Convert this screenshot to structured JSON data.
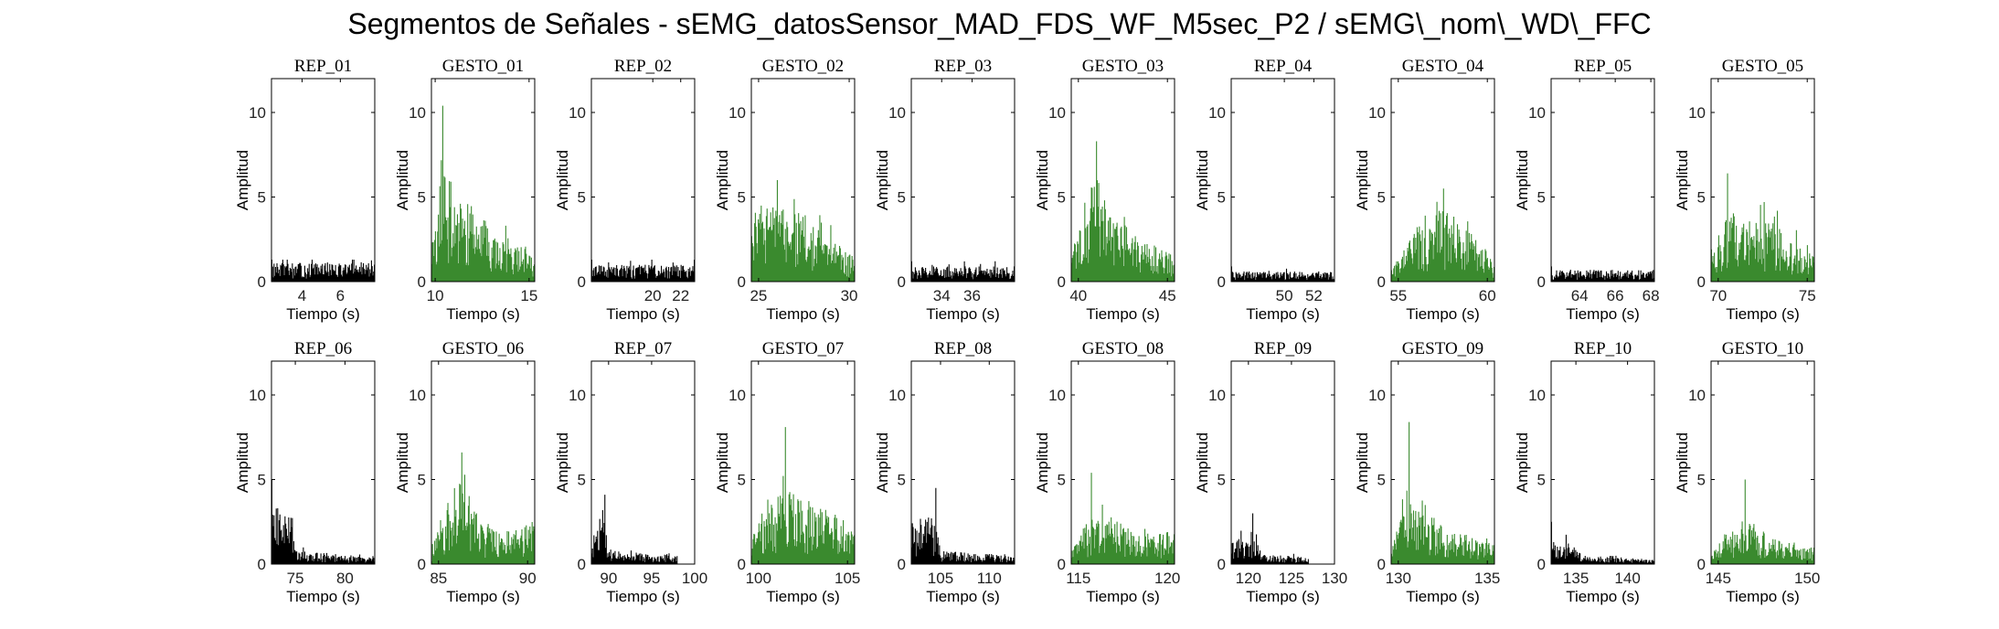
{
  "figure": {
    "title": "Segmentos de Señales - sEMG_datosSensor_MAD_FDS_WF_M5sec_P2 / sEMG\\_nom\\_WD\\_FFC"
  },
  "colors": {
    "rep": "#000000",
    "gesto": "#3a8a2e",
    "axes": "#000000",
    "background": "#ffffff"
  },
  "chart_data": [
    {
      "type": "bar",
      "title": "REP_01",
      "kind": "rep",
      "xlim": [
        2.4,
        7.8
      ],
      "xticks": [
        4,
        6
      ],
      "ylim": [
        0,
        12
      ],
      "yticks": [
        0,
        5,
        10
      ],
      "xlabel": "Tiempo (s)",
      "ylabel": "Amplitud",
      "data_start": 2.4,
      "data_end": 7.8,
      "envelope": [
        [
          2.4,
          1.1
        ],
        [
          7.8,
          1.1
        ]
      ],
      "peak": 1.3
    },
    {
      "type": "bar",
      "title": "GESTO_01",
      "kind": "gesto",
      "xlim": [
        9.8,
        15.3
      ],
      "xticks": [
        10,
        15
      ],
      "ylim": [
        0,
        12
      ],
      "yticks": [
        0,
        5,
        10
      ],
      "xlabel": "Tiempo (s)",
      "ylabel": "Amplitud",
      "data_start": 9.8,
      "data_end": 15.3,
      "envelope": [
        [
          9.8,
          2.0
        ],
        [
          10.4,
          6.5
        ],
        [
          11.2,
          5.5
        ],
        [
          12.4,
          3.8
        ],
        [
          13.6,
          3.0
        ],
        [
          15.3,
          1.8
        ]
      ],
      "peak": 10.4
    },
    {
      "type": "bar",
      "title": "REP_02",
      "kind": "rep",
      "xlim": [
        15.6,
        23.0
      ],
      "xticks": [
        20,
        22
      ],
      "ylim": [
        0,
        12
      ],
      "yticks": [
        0,
        5,
        10
      ],
      "xlabel": "Tiempo (s)",
      "ylabel": "Amplitud",
      "data_start": 15.6,
      "data_end": 23.0,
      "envelope": [
        [
          15.6,
          1.0
        ],
        [
          23.0,
          1.0
        ]
      ],
      "peak": 1.3
    },
    {
      "type": "bar",
      "title": "GESTO_02",
      "kind": "gesto",
      "xlim": [
        24.6,
        30.3
      ],
      "xticks": [
        25,
        30
      ],
      "ylim": [
        0,
        12
      ],
      "yticks": [
        0,
        5,
        10
      ],
      "xlabel": "Tiempo (s)",
      "ylabel": "Amplitud",
      "data_start": 24.6,
      "data_end": 30.3,
      "envelope": [
        [
          24.6,
          4.5
        ],
        [
          26.0,
          4.6
        ],
        [
          27.5,
          4.0
        ],
        [
          29.0,
          2.6
        ],
        [
          30.3,
          1.5
        ]
      ],
      "peak": 6.0
    },
    {
      "type": "bar",
      "title": "REP_03",
      "kind": "rep",
      "xlim": [
        32.0,
        38.8
      ],
      "xticks": [
        34,
        36
      ],
      "ylim": [
        0,
        12
      ],
      "yticks": [
        0,
        5,
        10
      ],
      "xlabel": "Tiempo (s)",
      "ylabel": "Amplitud",
      "data_start": 32.0,
      "data_end": 38.8,
      "envelope": [
        [
          32.0,
          0.9
        ],
        [
          38.8,
          0.9
        ]
      ],
      "peak": 1.2
    },
    {
      "type": "bar",
      "title": "GESTO_03",
      "kind": "gesto",
      "xlim": [
        39.6,
        45.4
      ],
      "xticks": [
        40,
        45
      ],
      "ylim": [
        0,
        12
      ],
      "yticks": [
        0,
        5,
        10
      ],
      "xlabel": "Tiempo (s)",
      "ylabel": "Amplitud",
      "data_start": 39.6,
      "data_end": 45.4,
      "envelope": [
        [
          39.6,
          1.5
        ],
        [
          40.5,
          4.5
        ],
        [
          41.0,
          7.0
        ],
        [
          41.8,
          4.0
        ],
        [
          43.5,
          2.6
        ],
        [
          45.4,
          1.5
        ]
      ],
      "peak": 8.3
    },
    {
      "type": "bar",
      "title": "REP_04",
      "kind": "rep",
      "xlim": [
        46.4,
        53.4
      ],
      "xticks": [
        50,
        52
      ],
      "ylim": [
        0,
        12
      ],
      "yticks": [
        0,
        5,
        10
      ],
      "xlabel": "Tiempo (s)",
      "ylabel": "Amplitud",
      "data_start": 46.4,
      "data_end": 53.4,
      "envelope": [
        [
          46.4,
          0.6
        ],
        [
          53.4,
          0.6
        ]
      ],
      "peak": 0.9
    },
    {
      "type": "bar",
      "title": "GESTO_04",
      "kind": "gesto",
      "xlim": [
        54.6,
        60.4
      ],
      "xticks": [
        55,
        60
      ],
      "ylim": [
        0,
        12
      ],
      "yticks": [
        0,
        5,
        10
      ],
      "xlabel": "Tiempo (s)",
      "ylabel": "Amplitud",
      "data_start": 54.6,
      "data_end": 60.4,
      "envelope": [
        [
          54.6,
          0.8
        ],
        [
          55.5,
          2.5
        ],
        [
          56.5,
          4.0
        ],
        [
          57.5,
          4.5
        ],
        [
          58.7,
          3.4
        ],
        [
          60.4,
          1.2
        ]
      ],
      "peak": 5.5
    },
    {
      "type": "bar",
      "title": "REP_05",
      "kind": "rep",
      "xlim": [
        62.4,
        68.2
      ],
      "xticks": [
        64,
        66,
        68
      ],
      "ylim": [
        0,
        12
      ],
      "yticks": [
        0,
        5,
        10
      ],
      "xlabel": "Tiempo (s)",
      "ylabel": "Amplitud",
      "data_start": 62.4,
      "data_end": 68.2,
      "envelope": [
        [
          62.4,
          0.7
        ],
        [
          68.2,
          0.7
        ]
      ],
      "peak": 0.9
    },
    {
      "type": "bar",
      "title": "GESTO_05",
      "kind": "gesto",
      "xlim": [
        69.6,
        75.4
      ],
      "xticks": [
        70,
        75
      ],
      "ylim": [
        0,
        12
      ],
      "yticks": [
        0,
        5,
        10
      ],
      "xlabel": "Tiempo (s)",
      "ylabel": "Amplitud",
      "data_start": 69.6,
      "data_end": 75.4,
      "envelope": [
        [
          69.6,
          1.5
        ],
        [
          70.5,
          4.2
        ],
        [
          71.5,
          3.8
        ],
        [
          73.0,
          3.5
        ],
        [
          74.5,
          2.2
        ],
        [
          75.4,
          1.5
        ]
      ],
      "peak": 6.4
    },
    {
      "type": "bar",
      "title": "REP_06",
      "kind": "rep",
      "xlim": [
        72.6,
        83.0
      ],
      "xticks": [
        75,
        80
      ],
      "ylim": [
        0,
        12
      ],
      "yticks": [
        0,
        5,
        10
      ],
      "xlabel": "Tiempo (s)",
      "ylabel": "Amplitud",
      "data_start": 72.6,
      "data_end": 83.0,
      "envelope": [
        [
          72.6,
          3.5
        ],
        [
          74.7,
          3.0
        ],
        [
          75.0,
          0.8
        ],
        [
          83.0,
          0.4
        ]
      ],
      "peak": 5.0
    },
    {
      "type": "bar",
      "title": "GESTO_06",
      "kind": "gesto",
      "xlim": [
        84.6,
        90.4
      ],
      "xticks": [
        85,
        90
      ],
      "ylim": [
        0,
        12
      ],
      "yticks": [
        0,
        5,
        10
      ],
      "xlabel": "Tiempo (s)",
      "ylabel": "Amplitud",
      "data_start": 84.6,
      "data_end": 90.4,
      "envelope": [
        [
          84.6,
          1.0
        ],
        [
          85.5,
          4.0
        ],
        [
          86.3,
          5.0
        ],
        [
          87.5,
          2.2
        ],
        [
          89.0,
          2.0
        ],
        [
          90.4,
          2.6
        ]
      ],
      "peak": 6.6
    },
    {
      "type": "bar",
      "title": "REP_07",
      "kind": "rep",
      "xlim": [
        88.0,
        100.0
      ],
      "xticks": [
        90,
        95,
        100
      ],
      "ylim": [
        0,
        12
      ],
      "yticks": [
        0,
        5,
        10
      ],
      "xlabel": "Tiempo (s)",
      "ylabel": "Amplitud",
      "data_start": 88.0,
      "data_end": 98.0,
      "envelope": [
        [
          88.0,
          2.5
        ],
        [
          89.5,
          2.8
        ],
        [
          90.0,
          0.8
        ],
        [
          98.0,
          0.5
        ]
      ],
      "peak": 4.1
    },
    {
      "type": "bar",
      "title": "GESTO_07",
      "kind": "gesto",
      "xlim": [
        99.6,
        105.4
      ],
      "xticks": [
        100,
        105
      ],
      "ylim": [
        0,
        12
      ],
      "yticks": [
        0,
        5,
        10
      ],
      "xlabel": "Tiempo (s)",
      "ylabel": "Amplitud",
      "data_start": 99.6,
      "data_end": 105.4,
      "envelope": [
        [
          99.6,
          1.5
        ],
        [
          100.5,
          4.0
        ],
        [
          101.5,
          4.5
        ],
        [
          103.0,
          3.5
        ],
        [
          104.5,
          3.0
        ],
        [
          105.4,
          2.0
        ]
      ],
      "peak": 8.1
    },
    {
      "type": "bar",
      "title": "REP_08",
      "kind": "rep",
      "xlim": [
        102.0,
        112.6
      ],
      "xticks": [
        105,
        110
      ],
      "ylim": [
        0,
        12
      ],
      "yticks": [
        0,
        5,
        10
      ],
      "xlabel": "Tiempo (s)",
      "ylabel": "Amplitud",
      "data_start": 102.0,
      "data_end": 112.6,
      "envelope": [
        [
          102.0,
          2.5
        ],
        [
          104.5,
          3.2
        ],
        [
          105.0,
          0.8
        ],
        [
          112.6,
          0.5
        ]
      ],
      "peak": 4.5
    },
    {
      "type": "bar",
      "title": "GESTO_08",
      "kind": "gesto",
      "xlim": [
        114.6,
        120.4
      ],
      "xticks": [
        115,
        120
      ],
      "ylim": [
        0,
        12
      ],
      "yticks": [
        0,
        5,
        10
      ],
      "xlabel": "Tiempo (s)",
      "ylabel": "Amplitud",
      "data_start": 114.6,
      "data_end": 120.4,
      "envelope": [
        [
          114.6,
          0.8
        ],
        [
          115.7,
          3.0
        ],
        [
          116.8,
          2.8
        ],
        [
          118.5,
          1.8
        ],
        [
          120.4,
          2.0
        ]
      ],
      "peak": 5.4
    },
    {
      "type": "bar",
      "title": "REP_09",
      "kind": "rep",
      "xlim": [
        118.0,
        130.0
      ],
      "xticks": [
        120,
        125,
        130
      ],
      "ylim": [
        0,
        12
      ],
      "yticks": [
        0,
        5,
        10
      ],
      "xlabel": "Tiempo (s)",
      "ylabel": "Amplitud",
      "data_start": 118.0,
      "data_end": 127.0,
      "envelope": [
        [
          118.0,
          1.2
        ],
        [
          120.5,
          2.0
        ],
        [
          121.5,
          0.6
        ],
        [
          127.0,
          0.4
        ]
      ],
      "peak": 3.0
    },
    {
      "type": "bar",
      "title": "GESTO_09",
      "kind": "gesto",
      "xlim": [
        129.6,
        135.4
      ],
      "xticks": [
        130,
        135
      ],
      "ylim": [
        0,
        12
      ],
      "yticks": [
        0,
        5,
        10
      ],
      "xlabel": "Tiempo (s)",
      "ylabel": "Amplitud",
      "data_start": 129.6,
      "data_end": 135.4,
      "envelope": [
        [
          129.6,
          1.0
        ],
        [
          130.6,
          4.0
        ],
        [
          131.5,
          2.8
        ],
        [
          133.0,
          2.0
        ],
        [
          135.4,
          1.2
        ]
      ],
      "peak": 8.4
    },
    {
      "type": "bar",
      "title": "REP_10",
      "kind": "rep",
      "xlim": [
        132.6,
        142.6
      ],
      "xticks": [
        135,
        140
      ],
      "ylim": [
        0,
        12
      ],
      "yticks": [
        0,
        5,
        10
      ],
      "xlabel": "Tiempo (s)",
      "ylabel": "Amplitud",
      "data_start": 132.6,
      "data_end": 142.6,
      "envelope": [
        [
          132.6,
          1.5
        ],
        [
          135.0,
          1.2
        ],
        [
          135.5,
          0.5
        ],
        [
          142.6,
          0.3
        ]
      ],
      "peak": 2.5
    },
    {
      "type": "bar",
      "title": "GESTO_10",
      "kind": "gesto",
      "xlim": [
        144.6,
        150.4
      ],
      "xticks": [
        145,
        150
      ],
      "ylim": [
        0,
        12
      ],
      "yticks": [
        0,
        5,
        10
      ],
      "xlabel": "Tiempo (s)",
      "ylabel": "Amplitud",
      "data_start": 144.6,
      "data_end": 150.4,
      "envelope": [
        [
          144.6,
          0.6
        ],
        [
          145.5,
          1.8
        ],
        [
          146.5,
          2.8
        ],
        [
          148.0,
          1.6
        ],
        [
          150.4,
          1.0
        ]
      ],
      "peak": 5.0
    }
  ]
}
